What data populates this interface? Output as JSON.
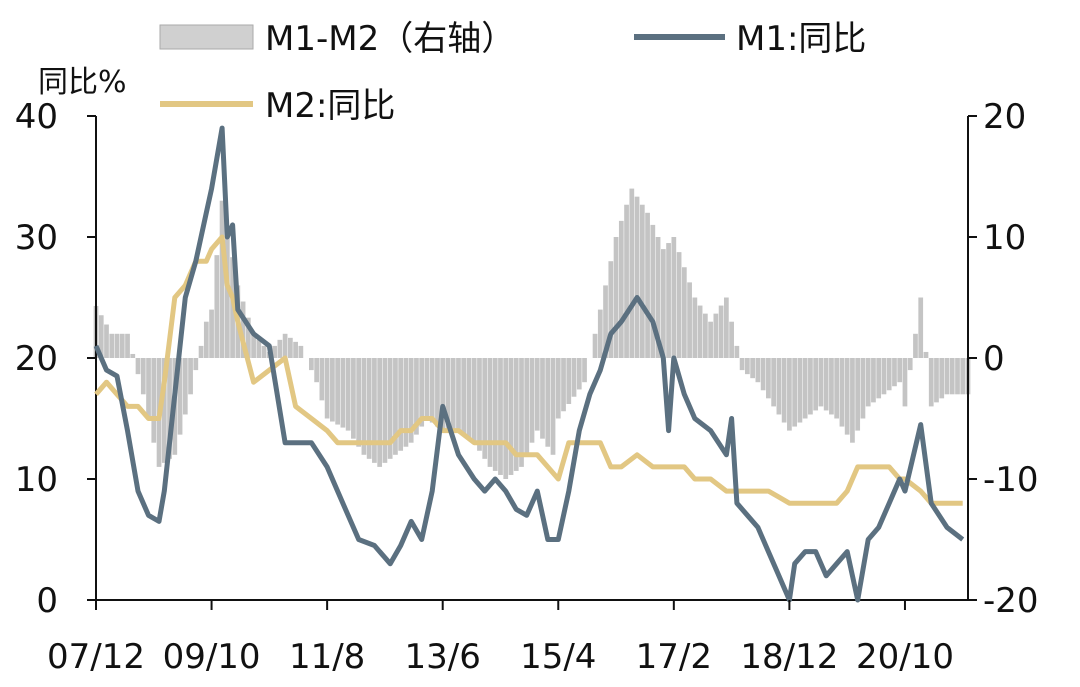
{
  "chart_data": {
    "type": "line",
    "unit_label": "同比%",
    "legend_position": "top",
    "colors": {
      "m1": "#5b7080",
      "m2": "#e2c783",
      "diff": "#c4c4c4"
    },
    "x_tick_labels": [
      "07/12",
      "09/10",
      "11/8",
      "13/6",
      "15/4",
      "17/2",
      "18/12",
      "20/10"
    ],
    "y_left": {
      "ylim": [
        0,
        40
      ],
      "ticks": [
        "0",
        "10",
        "20",
        "30",
        "40"
      ]
    },
    "y_right": {
      "ylim": [
        -20,
        20
      ],
      "ticks": [
        "-20",
        "-10",
        "0",
        "10",
        "20"
      ]
    },
    "series": [
      {
        "name": "M1-M2（右轴）",
        "type": "bar",
        "axis": "right",
        "x": [
          "07/12",
          "08/03",
          "08/06",
          "08/09",
          "08/12",
          "09/03",
          "09/06",
          "09/09",
          "09/10",
          "09/12",
          "10/03",
          "10/06",
          "10/09",
          "10/12",
          "11/03",
          "11/06",
          "11/08",
          "11/12",
          "12/03",
          "12/06",
          "12/09",
          "12/12",
          "13/03",
          "13/06",
          "13/09",
          "13/12",
          "14/03",
          "14/06",
          "14/09",
          "14/12",
          "15/03",
          "15/04",
          "15/09",
          "15/12",
          "16/03",
          "16/06",
          "16/09",
          "16/12",
          "17/02",
          "17/06",
          "17/09",
          "17/12",
          "18/03",
          "18/06",
          "18/09",
          "18/12",
          "19/03",
          "19/06",
          "19/09",
          "19/12",
          "20/03",
          "20/06",
          "20/09",
          "20/10",
          "21/01",
          "21/03",
          "21/06",
          "21/09"
        ],
        "values": [
          4.3,
          2,
          2,
          -3,
          -9,
          -8,
          -3,
          3,
          4,
          13,
          6,
          2,
          0.5,
          2,
          1,
          -2,
          -5,
          -6,
          -8,
          -9,
          -8,
          -7,
          -5,
          -6,
          -6,
          -7,
          -9,
          -10,
          -9,
          -6,
          -8,
          -5,
          -2,
          4,
          10,
          14,
          12,
          9,
          10,
          5,
          3,
          5,
          -1,
          -2,
          -4,
          -6,
          -5,
          -4,
          -5,
          -7,
          -4,
          -3,
          -2,
          -4,
          5,
          -4,
          -3,
          -3
        ]
      },
      {
        "name": "M1:同比",
        "type": "line",
        "axis": "left",
        "x": [
          "07/12",
          "08/02",
          "08/04",
          "08/06",
          "08/08",
          "08/10",
          "08/12",
          "09/01",
          "09/03",
          "09/05",
          "09/07",
          "09/09",
          "09/10",
          "09/12",
          "10/01",
          "10/02",
          "10/03",
          "10/06",
          "10/09",
          "10/12",
          "11/02",
          "11/05",
          "11/08",
          "11/10",
          "11/12",
          "12/02",
          "12/05",
          "12/08",
          "12/10",
          "12/12",
          "13/02",
          "13/04",
          "13/06",
          "13/09",
          "13/12",
          "14/02",
          "14/04",
          "14/06",
          "14/08",
          "14/10",
          "14/12",
          "15/02",
          "15/04",
          "15/06",
          "15/08",
          "15/10",
          "15/12",
          "16/02",
          "16/04",
          "16/07",
          "16/10",
          "16/12",
          "17/01",
          "17/02",
          "17/04",
          "17/06",
          "17/09",
          "17/12",
          "18/01",
          "18/02",
          "18/04",
          "18/06",
          "18/08",
          "18/10",
          "18/12",
          "19/01",
          "19/03",
          "19/05",
          "19/07",
          "19/09",
          "19/11",
          "20/01",
          "20/03",
          "20/05",
          "20/07",
          "20/09",
          "20/10",
          "21/01",
          "21/03",
          "21/06",
          "21/09"
        ],
        "values": [
          21,
          19,
          18.5,
          14,
          9,
          7,
          6.5,
          9,
          17,
          25,
          28,
          32,
          34,
          39,
          30,
          31,
          24,
          22,
          21,
          13,
          13,
          13,
          11,
          9,
          7,
          5,
          4.5,
          3,
          4.5,
          6.5,
          5,
          9,
          16,
          12,
          10,
          9,
          10,
          9,
          7.5,
          7,
          9,
          5,
          5,
          9,
          14,
          17,
          19,
          22,
          23,
          25,
          23,
          20,
          14,
          20,
          17,
          15,
          14,
          12,
          15,
          8,
          7,
          6,
          4,
          2,
          0,
          3,
          4,
          4,
          2,
          3,
          4,
          0,
          5,
          6,
          8,
          10,
          9,
          14.5,
          8,
          6,
          5
        ]
      },
      {
        "name": "M2:同比",
        "type": "line",
        "axis": "left",
        "x": [
          "07/12",
          "08/02",
          "08/04",
          "08/06",
          "08/08",
          "08/10",
          "08/12",
          "09/01",
          "09/03",
          "09/05",
          "09/07",
          "09/09",
          "09/10",
          "09/12",
          "10/01",
          "10/02",
          "10/03",
          "10/06",
          "10/09",
          "10/12",
          "11/02",
          "11/05",
          "11/08",
          "11/10",
          "11/12",
          "12/02",
          "12/05",
          "12/08",
          "12/10",
          "12/12",
          "13/02",
          "13/04",
          "13/06",
          "13/09",
          "13/12",
          "14/02",
          "14/04",
          "14/06",
          "14/08",
          "14/10",
          "14/12",
          "15/02",
          "15/04",
          "15/06",
          "15/08",
          "15/10",
          "15/12",
          "16/02",
          "16/04",
          "16/07",
          "16/10",
          "16/12",
          "17/01",
          "17/02",
          "17/04",
          "17/06",
          "17/09",
          "17/12",
          "18/01",
          "18/02",
          "18/04",
          "18/06",
          "18/08",
          "18/10",
          "18/12",
          "19/01",
          "19/03",
          "19/05",
          "19/07",
          "19/09",
          "19/11",
          "20/01",
          "20/03",
          "20/05",
          "20/07",
          "20/09",
          "20/10",
          "21/01",
          "21/03",
          "21/06",
          "21/09"
        ],
        "values": [
          17,
          18,
          17,
          16,
          16,
          15,
          15,
          18,
          25,
          26,
          28,
          28,
          29,
          30,
          26,
          25,
          23,
          18,
          19,
          20,
          16,
          15,
          14,
          13,
          13,
          13,
          13,
          13,
          14,
          14,
          15,
          15,
          14,
          14,
          13,
          13,
          13,
          13,
          12,
          12,
          12,
          11,
          10,
          13,
          13,
          13,
          13,
          11,
          11,
          12,
          11,
          11,
          11,
          11,
          11,
          10,
          10,
          9,
          9,
          9,
          9,
          9,
          9,
          8.5,
          8,
          8,
          8,
          8,
          8,
          8,
          9,
          11,
          11,
          11,
          11,
          10,
          10,
          9,
          8,
          8,
          8
        ]
      }
    ]
  }
}
